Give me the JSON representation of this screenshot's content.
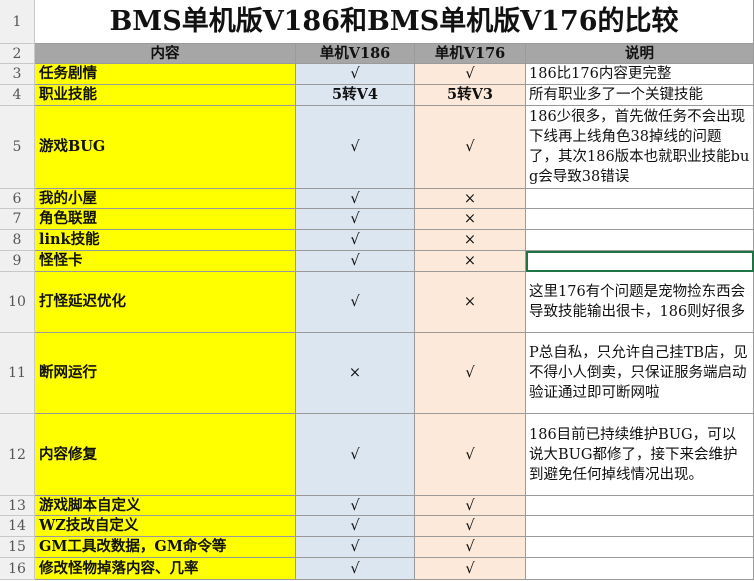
{
  "title": "BMS单机版V186和BMS单机版V176的比较",
  "headers": [
    "内容",
    "单机V186",
    "单机V176",
    "说明"
  ],
  "row_numbers": [
    1,
    2,
    3,
    4,
    5,
    6,
    7,
    8,
    9,
    10,
    11,
    12,
    13,
    14,
    15,
    16
  ],
  "rows": [
    [
      "任务剧情",
      "√",
      "√",
      "186比176内容更完整"
    ],
    [
      "职业技能",
      "5转V4",
      "5转V3",
      "所有职业多了一个关键技能"
    ],
    [
      "游戏BUG",
      "√",
      "√",
      "186少很多，首先做任务不会出现下线再上线角色38掉线的问题了，其次186版本也就职业技能bug会导致38错误"
    ],
    [
      "我的小屋",
      "√",
      "×",
      ""
    ],
    [
      "角色联盟",
      "√",
      "×",
      ""
    ],
    [
      "link技能",
      "√",
      "×",
      ""
    ],
    [
      "怪怪卡",
      "√",
      "×",
      ""
    ],
    [
      "打怪延迟优化",
      "√",
      "×",
      "这里176有个问题是宠物捡东西会导致技能输出很卡，186则好很多"
    ],
    [
      "断网运行",
      "×",
      "√",
      "P总自私，只允许自己挂TB店，见不得小人倒卖，只保证服务端启动验证通过即可断网啦"
    ],
    [
      "内容修复",
      "√",
      "√",
      "186目前已持续维护BUG，可以说大BUG都修了，接下来会维护到避免任何掉线情况出现。"
    ],
    [
      "游戏脚本自定义",
      "√",
      "√",
      ""
    ],
    [
      "WZ技改自定义",
      "√",
      "√",
      ""
    ],
    [
      "GM工具改数据，GM命令等",
      "√",
      "√",
      ""
    ],
    [
      "修改怪物掉落内容、几率",
      "√",
      "√",
      ""
    ]
  ]
}
